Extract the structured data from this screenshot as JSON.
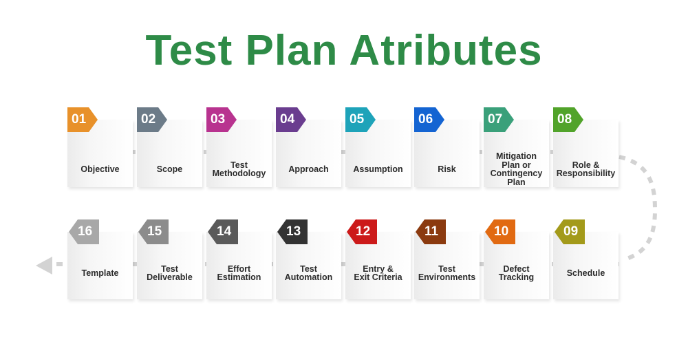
{
  "title": "Test Plan Atributes",
  "colors": {
    "title": "#2e8b47",
    "connector": "#d3d3d3"
  },
  "steps": [
    {
      "num": "01",
      "label": "Objective",
      "color": "#e8912a"
    },
    {
      "num": "02",
      "label": "Scope",
      "color": "#6c7b88"
    },
    {
      "num": "03",
      "label": "Test\nMethodology",
      "color": "#b8338f"
    },
    {
      "num": "04",
      "label": "Approach",
      "color": "#6a3d8f"
    },
    {
      "num": "05",
      "label": "Assumption",
      "color": "#1ea3b9"
    },
    {
      "num": "06",
      "label": "Risk",
      "color": "#1464d2"
    },
    {
      "num": "07",
      "label": "Mitigation\nPlan or\nContingency\nPlan",
      "color": "#3aa07a"
    },
    {
      "num": "08",
      "label": "Role &\nResponsibility",
      "color": "#51a32a"
    },
    {
      "num": "09",
      "label": "Schedule",
      "color": "#a39a1a"
    },
    {
      "num": "10",
      "label": "Defect\nTracking",
      "color": "#e16a12"
    },
    {
      "num": "11",
      "label": "Test\nEnvironments",
      "color": "#8b3a0f"
    },
    {
      "num": "12",
      "label": "Entry &\nExit Criteria",
      "color": "#cc1a1a"
    },
    {
      "num": "13",
      "label": "Test\nAutomation",
      "color": "#333333"
    },
    {
      "num": "14",
      "label": "Effort\nEstimation",
      "color": "#5a5a5a"
    },
    {
      "num": "15",
      "label": "Test\nDeliverable",
      "color": "#8c8c8c"
    },
    {
      "num": "16",
      "label": "Template",
      "color": "#a8a8a8"
    }
  ]
}
